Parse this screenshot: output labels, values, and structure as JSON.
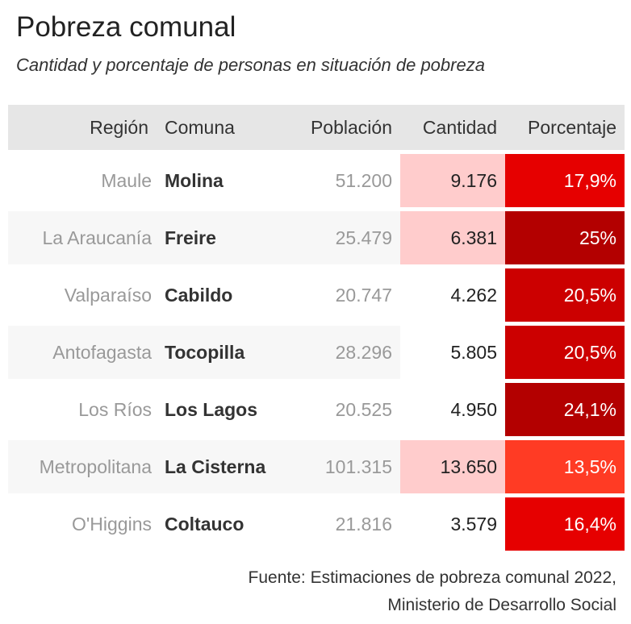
{
  "title": "Pobreza comunal",
  "subtitle": "Cantidad y porcentaje de personas en situación de pobreza",
  "source_line1": "Fuente: Estimaciones de pobreza comunal 2022,",
  "source_line2": "Ministerio de Desarrollo Social",
  "colors": {
    "header_bg": "#e6e6e6",
    "alt_row_bg": "#f7f7f7",
    "cantidad_highlight": "#ffcccc",
    "pct_red_dark": "#b30000",
    "pct_red_mid": "#cc0000",
    "pct_red": "#e60000",
    "pct_red_light": "#ff3b24"
  },
  "chart_data": {
    "type": "table",
    "columns": [
      "Región",
      "Comuna",
      "Población",
      "Cantidad",
      "Porcentaje"
    ],
    "rows": [
      {
        "region": "Maule",
        "comuna": "Molina",
        "poblacion": "51.200",
        "cantidad": "9.176",
        "porcentaje": "17,9%",
        "cantidad_highlight": true,
        "pct_color": "#e60000"
      },
      {
        "region": "La Araucanía",
        "comuna": "Freire",
        "poblacion": "25.479",
        "cantidad": "6.381",
        "porcentaje": "25%",
        "cantidad_highlight": true,
        "pct_color": "#b30000"
      },
      {
        "region": "Valparaíso",
        "comuna": "Cabildo",
        "poblacion": "20.747",
        "cantidad": "4.262",
        "porcentaje": "20,5%",
        "cantidad_highlight": false,
        "pct_color": "#cc0000"
      },
      {
        "region": "Antofagasta",
        "comuna": "Tocopilla",
        "poblacion": "28.296",
        "cantidad": "5.805",
        "porcentaje": "20,5%",
        "cantidad_highlight": false,
        "pct_color": "#cc0000"
      },
      {
        "region": "Los Ríos",
        "comuna": "Los Lagos",
        "poblacion": "20.525",
        "cantidad": "4.950",
        "porcentaje": "24,1%",
        "cantidad_highlight": false,
        "pct_color": "#b30000"
      },
      {
        "region": "Metropolitana",
        "comuna": "La Cisterna",
        "poblacion": "101.315",
        "cantidad": "13.650",
        "porcentaje": "13,5%",
        "cantidad_highlight": true,
        "pct_color": "#ff3b24"
      },
      {
        "region": "O'Higgins",
        "comuna": "Coltauco",
        "poblacion": "21.816",
        "cantidad": "3.579",
        "porcentaje": "16,4%",
        "cantidad_highlight": false,
        "pct_color": "#e60000"
      }
    ]
  }
}
